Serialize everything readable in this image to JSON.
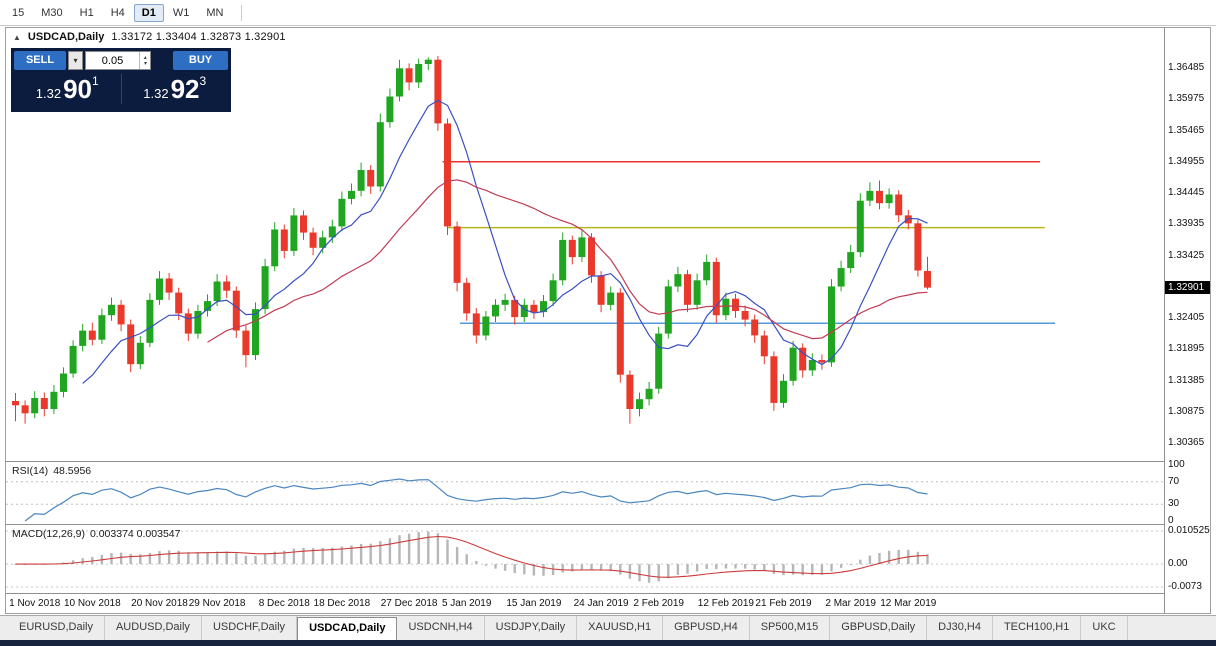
{
  "toolbar": {
    "timeframes": [
      "15",
      "M30",
      "H1",
      "H4",
      "D1",
      "W1",
      "MN"
    ],
    "active_index": 4
  },
  "chart_header": {
    "collapse_icon": "▲",
    "symbol": "USDCAD,Daily",
    "ohlc_text": "1.33172 1.33404 1.32873 1.32901"
  },
  "trade_panel": {
    "sell_label": "SELL",
    "buy_label": "BUY",
    "volume": "0.05",
    "icons": {
      "caret_down": "▾",
      "spin_up": "▴",
      "spin_down": "▾"
    },
    "bid": {
      "prefix": "1.32",
      "big": "90",
      "sup": "1"
    },
    "ask": {
      "prefix": "1.32",
      "big": "92",
      "sup": "3"
    }
  },
  "price_axis": {
    "labels": [
      "1.36485",
      "1.35975",
      "1.35465",
      "1.34955",
      "1.34445",
      "1.33935",
      "1.33425",
      "1.32405",
      "1.31895",
      "1.31385",
      "1.30875",
      "1.30365"
    ],
    "current": "1.32901"
  },
  "chart_data": {
    "type": "candlestick",
    "title": "USDCAD,Daily",
    "up_color": "#1fa51f",
    "down_color": "#e8392a",
    "ylim": [
      1.30365,
      1.36485
    ],
    "moving_averages": [
      {
        "period": 8,
        "color": "#3b4fc0"
      },
      {
        "period": 21,
        "color": "#c23b55"
      }
    ],
    "price_lines": [
      {
        "name": "resistance-line-red",
        "price": 1.34955,
        "color": "#ec322b",
        "span": [
          0.377,
          0.893
        ]
      },
      {
        "name": "resistance-line-olive",
        "price": 1.3388,
        "color": "#b5b520",
        "span": [
          0.381,
          0.897
        ]
      },
      {
        "name": "support-line-blue",
        "price": 1.3232,
        "color": "#5599d8",
        "span": [
          0.392,
          0.906
        ]
      }
    ],
    "x_ticks": [
      {
        "label": "1 Nov 2018",
        "i": 2
      },
      {
        "label": "10 Nov 2018",
        "i": 8
      },
      {
        "label": "20 Nov 2018",
        "i": 15
      },
      {
        "label": "29 Nov 2018",
        "i": 21
      },
      {
        "label": "8 Dec 2018",
        "i": 28
      },
      {
        "label": "18 Dec 2018",
        "i": 34
      },
      {
        "label": "27 Dec 2018",
        "i": 41
      },
      {
        "label": "5 Jan 2019",
        "i": 47
      },
      {
        "label": "15 Jan 2019",
        "i": 54
      },
      {
        "label": "24 Jan 2019",
        "i": 61
      },
      {
        "label": "2 Feb 2019",
        "i": 67
      },
      {
        "label": "12 Feb 2019",
        "i": 74
      },
      {
        "label": "21 Feb 2019",
        "i": 80
      },
      {
        "label": "2 Mar 2019",
        "i": 87
      },
      {
        "label": "12 Mar 2019",
        "i": 93
      }
    ],
    "candles": [
      [
        1.3105,
        1.3118,
        1.3072,
        1.3098
      ],
      [
        1.3098,
        1.3106,
        1.3068,
        1.3085
      ],
      [
        1.3085,
        1.3121,
        1.3077,
        1.311
      ],
      [
        1.311,
        1.3119,
        1.308,
        1.3092
      ],
      [
        1.3092,
        1.3131,
        1.3084,
        1.312
      ],
      [
        1.312,
        1.316,
        1.3111,
        1.315
      ],
      [
        1.315,
        1.3204,
        1.3143,
        1.3195
      ],
      [
        1.3195,
        1.3231,
        1.3186,
        1.322
      ],
      [
        1.322,
        1.3233,
        1.3196,
        1.3205
      ],
      [
        1.3205,
        1.3256,
        1.3198,
        1.3245
      ],
      [
        1.3245,
        1.3274,
        1.3236,
        1.3262
      ],
      [
        1.3262,
        1.327,
        1.3219,
        1.323
      ],
      [
        1.323,
        1.3238,
        1.3152,
        1.3165
      ],
      [
        1.3165,
        1.3211,
        1.3157,
        1.32
      ],
      [
        1.32,
        1.3281,
        1.3193,
        1.327
      ],
      [
        1.327,
        1.3317,
        1.3262,
        1.3305
      ],
      [
        1.3305,
        1.3314,
        1.327,
        1.3282
      ],
      [
        1.3282,
        1.329,
        1.3237,
        1.3248
      ],
      [
        1.3248,
        1.3256,
        1.3203,
        1.3215
      ],
      [
        1.3215,
        1.3262,
        1.3207,
        1.3252
      ],
      [
        1.3252,
        1.3279,
        1.3243,
        1.3268
      ],
      [
        1.3268,
        1.3312,
        1.326,
        1.33
      ],
      [
        1.33,
        1.331,
        1.3273,
        1.3285
      ],
      [
        1.3285,
        1.3292,
        1.3208,
        1.322
      ],
      [
        1.322,
        1.3228,
        1.316,
        1.318
      ],
      [
        1.318,
        1.3266,
        1.3172,
        1.3255
      ],
      [
        1.3255,
        1.3337,
        1.3247,
        1.3325
      ],
      [
        1.3325,
        1.3397,
        1.3317,
        1.3385
      ],
      [
        1.3385,
        1.3393,
        1.3338,
        1.335
      ],
      [
        1.335,
        1.342,
        1.3342,
        1.3408
      ],
      [
        1.3408,
        1.3416,
        1.3368,
        1.338
      ],
      [
        1.338,
        1.3388,
        1.3343,
        1.3355
      ],
      [
        1.3355,
        1.3383,
        1.3346,
        1.3372
      ],
      [
        1.3372,
        1.3401,
        1.3363,
        1.339
      ],
      [
        1.339,
        1.3447,
        1.3382,
        1.3435
      ],
      [
        1.3435,
        1.346,
        1.3426,
        1.3448
      ],
      [
        1.3448,
        1.3494,
        1.3439,
        1.3482
      ],
      [
        1.3482,
        1.349,
        1.3443,
        1.3455
      ],
      [
        1.3455,
        1.3574,
        1.3447,
        1.356
      ],
      [
        1.356,
        1.3615,
        1.3551,
        1.3602
      ],
      [
        1.3602,
        1.3662,
        1.3594,
        1.3648
      ],
      [
        1.3648,
        1.3656,
        1.3612,
        1.3625
      ],
      [
        1.3625,
        1.3664,
        1.3616,
        1.3655
      ],
      [
        1.3655,
        1.3666,
        1.3645,
        1.3662
      ],
      [
        1.3662,
        1.3668,
        1.3546,
        1.3558
      ],
      [
        1.3558,
        1.3566,
        1.3376,
        1.339
      ],
      [
        1.339,
        1.3398,
        1.3284,
        1.3298
      ],
      [
        1.3298,
        1.3306,
        1.3236,
        1.3248
      ],
      [
        1.3248,
        1.3257,
        1.3199,
        1.3212
      ],
      [
        1.3212,
        1.3252,
        1.3204,
        1.3243
      ],
      [
        1.3243,
        1.3271,
        1.3234,
        1.3262
      ],
      [
        1.3262,
        1.328,
        1.3252,
        1.327
      ],
      [
        1.327,
        1.3277,
        1.323,
        1.3242
      ],
      [
        1.3242,
        1.3272,
        1.3234,
        1.3262
      ],
      [
        1.3262,
        1.327,
        1.3239,
        1.325
      ],
      [
        1.325,
        1.3278,
        1.3242,
        1.3268
      ],
      [
        1.3268,
        1.3313,
        1.326,
        1.3302
      ],
      [
        1.3302,
        1.338,
        1.3294,
        1.3368
      ],
      [
        1.3368,
        1.3375,
        1.3328,
        1.334
      ],
      [
        1.334,
        1.3384,
        1.3332,
        1.3372
      ],
      [
        1.3372,
        1.3379,
        1.3298,
        1.331
      ],
      [
        1.331,
        1.3317,
        1.325,
        1.3262
      ],
      [
        1.3262,
        1.3292,
        1.3253,
        1.3282
      ],
      [
        1.3282,
        1.3289,
        1.3135,
        1.3148
      ],
      [
        1.3148,
        1.3155,
        1.3068,
        1.3092
      ],
      [
        1.3092,
        1.3119,
        1.308,
        1.3108
      ],
      [
        1.3108,
        1.3136,
        1.3098,
        1.3125
      ],
      [
        1.3125,
        1.3226,
        1.3117,
        1.3215
      ],
      [
        1.3215,
        1.3303,
        1.3207,
        1.3292
      ],
      [
        1.3292,
        1.3324,
        1.3283,
        1.3312
      ],
      [
        1.3312,
        1.3319,
        1.325,
        1.3262
      ],
      [
        1.3262,
        1.3313,
        1.3254,
        1.3302
      ],
      [
        1.3302,
        1.3344,
        1.3294,
        1.3332
      ],
      [
        1.3332,
        1.3339,
        1.3233,
        1.3245
      ],
      [
        1.3245,
        1.3282,
        1.3237,
        1.3272
      ],
      [
        1.3272,
        1.328,
        1.3241,
        1.3252
      ],
      [
        1.3252,
        1.3261,
        1.3227,
        1.3238
      ],
      [
        1.3238,
        1.3246,
        1.32,
        1.3212
      ],
      [
        1.3212,
        1.322,
        1.3165,
        1.3178
      ],
      [
        1.3178,
        1.3186,
        1.3089,
        1.3102
      ],
      [
        1.3102,
        1.3149,
        1.3094,
        1.3138
      ],
      [
        1.3138,
        1.3203,
        1.313,
        1.3192
      ],
      [
        1.3192,
        1.3199,
        1.3143,
        1.3155
      ],
      [
        1.3155,
        1.3183,
        1.3146,
        1.3172
      ],
      [
        1.3172,
        1.3181,
        1.3156,
        1.3168
      ],
      [
        1.3168,
        1.3304,
        1.3161,
        1.3292
      ],
      [
        1.3292,
        1.3334,
        1.3284,
        1.3322
      ],
      [
        1.3322,
        1.336,
        1.3314,
        1.3348
      ],
      [
        1.3348,
        1.3444,
        1.334,
        1.3432
      ],
      [
        1.3432,
        1.3462,
        1.3423,
        1.3448
      ],
      [
        1.3448,
        1.3465,
        1.3418,
        1.3428
      ],
      [
        1.3428,
        1.3452,
        1.3419,
        1.3442
      ],
      [
        1.3442,
        1.3449,
        1.3397,
        1.3408
      ],
      [
        1.3408,
        1.3417,
        1.3385,
        1.3395
      ],
      [
        1.3395,
        1.3401,
        1.3308,
        1.3318
      ],
      [
        1.33172,
        1.33404,
        1.32873,
        1.32901
      ]
    ]
  },
  "rsi": {
    "name": "RSI(14)",
    "value": "48.5956",
    "period": 14,
    "color": "#4a86c0",
    "dotted_levels": [
      70,
      30
    ],
    "axis_labels": [
      {
        "v": 100,
        "t": "100"
      },
      {
        "v": 70,
        "t": "70"
      },
      {
        "v": 30,
        "t": "30"
      },
      {
        "v": 0,
        "t": "0"
      }
    ]
  },
  "macd": {
    "name": "MACD(12,26,9)",
    "values": "0.003374 0.003547",
    "fast": 12,
    "slow": 26,
    "signal": 9,
    "hist_color": "#b6b6b6",
    "signal_color": "#cc3b3b",
    "range_top": 0.010525,
    "range_bottom": -0.0073,
    "axis_labels": [
      {
        "v": 0.010525,
        "t": "0.010525"
      },
      {
        "v": 0,
        "t": "0.00"
      },
      {
        "v": -0.0073,
        "t": "-0.0073"
      }
    ]
  },
  "tabs": {
    "active_index": 3,
    "items": [
      "EURUSD,Daily",
      "AUDUSD,Daily",
      "USDCHF,Daily",
      "USDCAD,Daily",
      "USDCNH,H4",
      "USDJPY,Daily",
      "XAUUSD,H1",
      "GBPUSD,H4",
      "SP500,M15",
      "GBPUSD,Daily",
      "DJ30,H4",
      "TECH100,H1",
      "UKC"
    ]
  }
}
